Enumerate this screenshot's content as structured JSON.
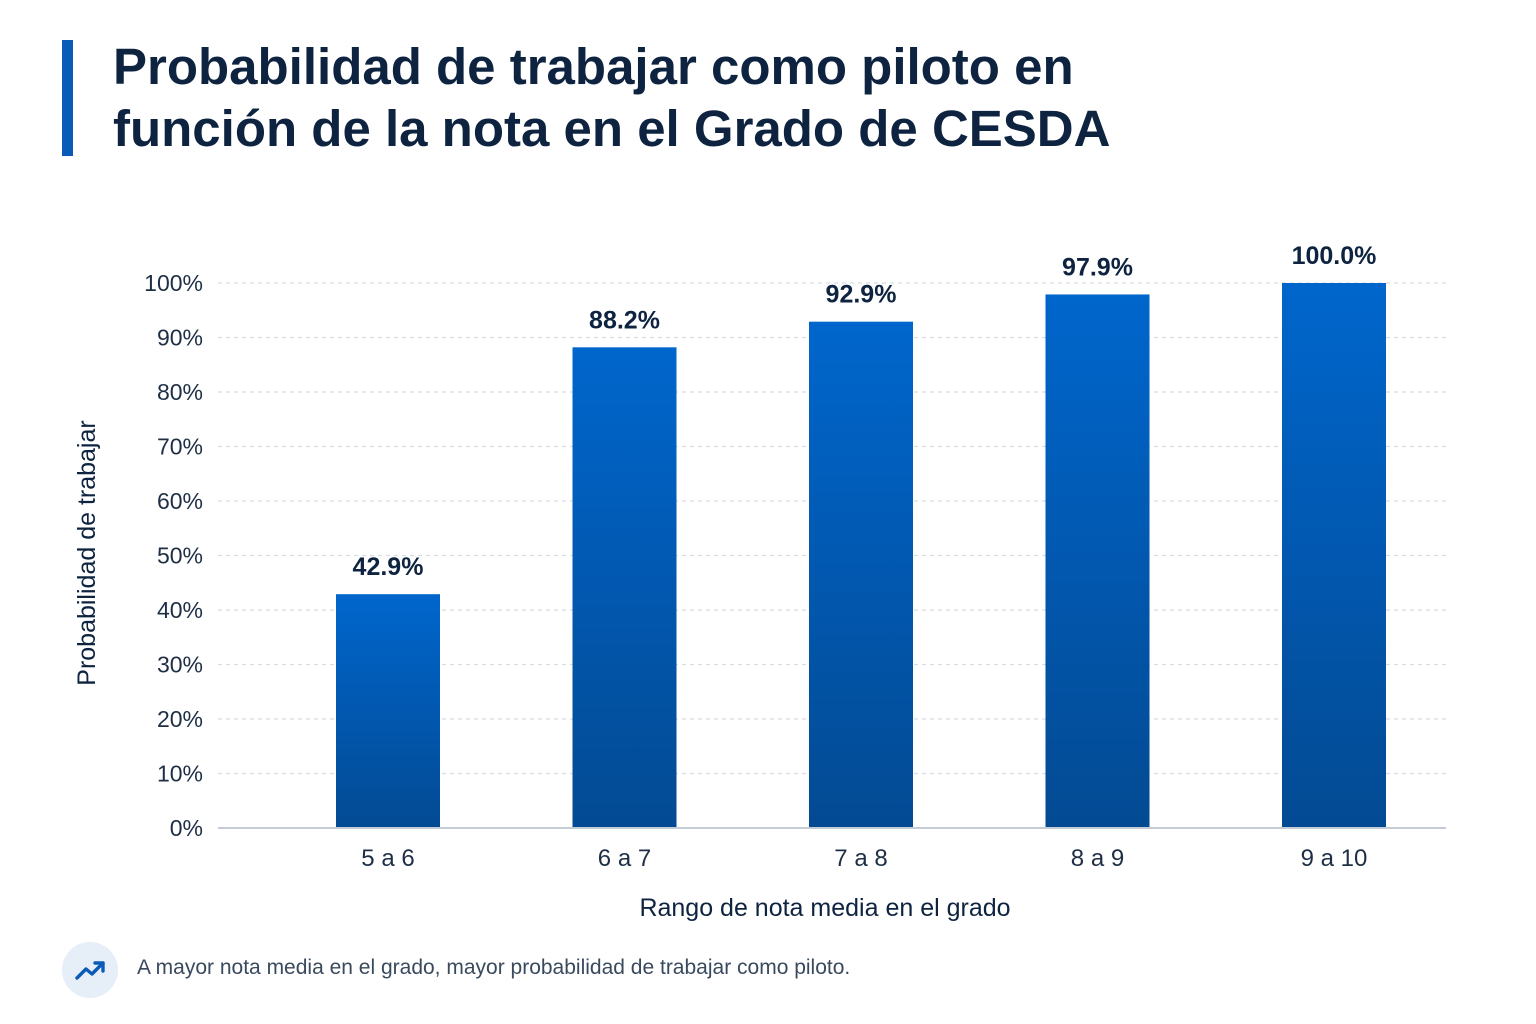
{
  "header": {
    "title_line1": "Probabilidad de trabajar como piloto en",
    "title_line2": "función de la nota en el Grado de CESDA"
  },
  "chart_data": {
    "type": "bar",
    "categories": [
      "5 a 6",
      "6 a 7",
      "7 a 8",
      "8 a 9",
      "9 a 10"
    ],
    "values": [
      42.9,
      88.2,
      92.9,
      97.9,
      100.0
    ],
    "value_labels": [
      "42.9%",
      "88.2%",
      "92.9%",
      "97.9%",
      "100.0%"
    ],
    "xlabel": "Rango de nota media en el grado",
    "ylabel": "Probabilidad de trabajar",
    "ylim": [
      0,
      100
    ],
    "yticks": [
      0,
      10,
      20,
      30,
      40,
      50,
      60,
      70,
      80,
      90,
      100
    ],
    "ytick_labels": [
      "0%",
      "10%",
      "20%",
      "30%",
      "40%",
      "50%",
      "60%",
      "70%",
      "80%",
      "90%",
      "100%"
    ],
    "grid": true,
    "legend": "none",
    "colors": {
      "bar_top": "#0066cc",
      "bar_bottom": "#034a93",
      "grid": "#d7dde5",
      "axis": "#c4ccd6"
    }
  },
  "footer": {
    "icon": "trend-up-icon",
    "note": "A mayor nota media en el grado, mayor probabilidad de trabajar como piloto."
  }
}
